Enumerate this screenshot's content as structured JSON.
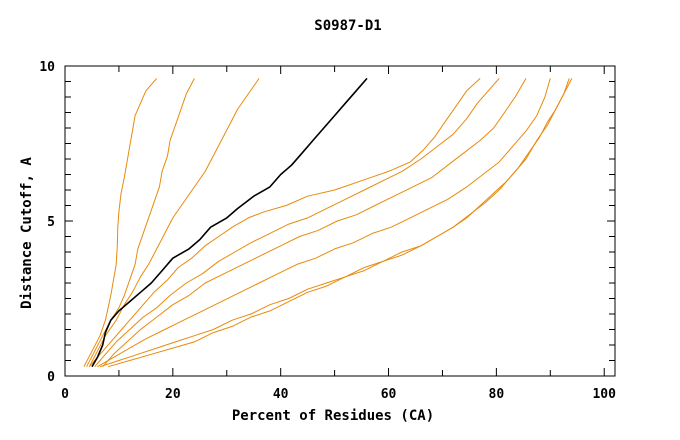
{
  "chart_data": {
    "type": "line",
    "title": "S0987-D1",
    "xlabel": "Percent of Residues (CA)",
    "ylabel": "Distance Cutoff, A",
    "xlim": [
      0,
      102
    ],
    "ylim": [
      0,
      10
    ],
    "x_ticks": [
      0,
      20,
      40,
      60,
      80,
      100
    ],
    "x_tick_labels": [
      "0",
      "20",
      "40",
      "60",
      "80",
      "100"
    ],
    "y_ticks": [
      0,
      5,
      10
    ],
    "y_tick_labels": [
      "0",
      "5",
      "10"
    ],
    "grid": false,
    "legend": "none",
    "colors": {
      "highlight": "#000000",
      "others": "#e88a0c",
      "axes": "#000000"
    },
    "series": [
      {
        "highlight": false,
        "points": [
          [
            3.5,
            0.3
          ],
          [
            5,
            0.8
          ],
          [
            6.5,
            1.3
          ],
          [
            7.5,
            1.8
          ],
          [
            8,
            2.2
          ],
          [
            8.5,
            2.6
          ],
          [
            9,
            3.1
          ],
          [
            9.5,
            3.6
          ],
          [
            9.7,
            4.2
          ],
          [
            9.8,
            4.8
          ],
          [
            10,
            5.3
          ],
          [
            10.4,
            5.9
          ],
          [
            11,
            6.4
          ],
          [
            11.5,
            6.9
          ],
          [
            12,
            7.4
          ],
          [
            12.5,
            7.9
          ],
          [
            13,
            8.4
          ],
          [
            14,
            8.8
          ],
          [
            15,
            9.2
          ],
          [
            17,
            9.6
          ]
        ]
      },
      {
        "highlight": false,
        "points": [
          [
            4,
            0.3
          ],
          [
            5.5,
            0.8
          ],
          [
            7,
            1.3
          ],
          [
            8.5,
            1.8
          ],
          [
            10,
            2.2
          ],
          [
            11,
            2.6
          ],
          [
            12,
            3.1
          ],
          [
            13,
            3.6
          ],
          [
            13.5,
            4.1
          ],
          [
            14.5,
            4.6
          ],
          [
            15.5,
            5.1
          ],
          [
            16.5,
            5.6
          ],
          [
            17.5,
            6.1
          ],
          [
            18,
            6.6
          ],
          [
            19,
            7.1
          ],
          [
            19.5,
            7.6
          ],
          [
            20.5,
            8.1
          ],
          [
            21.5,
            8.6
          ],
          [
            22.5,
            9.1
          ],
          [
            24,
            9.6
          ]
        ]
      },
      {
        "highlight": false,
        "points": [
          [
            4.5,
            0.3
          ],
          [
            6,
            0.8
          ],
          [
            7.5,
            1.3
          ],
          [
            9.5,
            1.8
          ],
          [
            11,
            2.3
          ],
          [
            12.5,
            2.7
          ],
          [
            14,
            3.2
          ],
          [
            15.5,
            3.6
          ],
          [
            17,
            4.1
          ],
          [
            18.5,
            4.6
          ],
          [
            20,
            5.1
          ],
          [
            22,
            5.6
          ],
          [
            24,
            6.1
          ],
          [
            26,
            6.6
          ],
          [
            27.5,
            7.1
          ],
          [
            29,
            7.6
          ],
          [
            30.5,
            8.1
          ],
          [
            32,
            8.6
          ],
          [
            34,
            9.1
          ],
          [
            36,
            9.6
          ]
        ]
      },
      {
        "highlight": true,
        "points": [
          [
            5,
            0.3
          ],
          [
            6,
            0.6
          ],
          [
            7,
            1.0
          ],
          [
            7.5,
            1.4
          ],
          [
            8.5,
            1.8
          ],
          [
            10,
            2.1
          ],
          [
            12,
            2.4
          ],
          [
            14,
            2.7
          ],
          [
            16,
            3.0
          ],
          [
            18,
            3.4
          ],
          [
            20,
            3.8
          ],
          [
            23,
            4.1
          ],
          [
            25,
            4.4
          ],
          [
            27,
            4.8
          ],
          [
            30,
            5.1
          ],
          [
            32,
            5.4
          ],
          [
            35,
            5.8
          ],
          [
            38,
            6.1
          ],
          [
            40,
            6.5
          ],
          [
            42,
            6.8
          ],
          [
            44,
            7.2
          ],
          [
            46,
            7.6
          ],
          [
            48,
            8.0
          ],
          [
            50,
            8.4
          ],
          [
            52,
            8.8
          ],
          [
            54,
            9.2
          ],
          [
            56,
            9.6
          ]
        ]
      },
      {
        "highlight": false,
        "points": [
          [
            4.5,
            0.3
          ],
          [
            6.5,
            0.7
          ],
          [
            8.5,
            1.1
          ],
          [
            10.5,
            1.5
          ],
          [
            12.5,
            1.9
          ],
          [
            14.5,
            2.3
          ],
          [
            16.5,
            2.7
          ],
          [
            19,
            3.1
          ],
          [
            21,
            3.5
          ],
          [
            23.5,
            3.8
          ],
          [
            26,
            4.2
          ],
          [
            28.5,
            4.5
          ],
          [
            31,
            4.8
          ],
          [
            34,
            5.1
          ],
          [
            37,
            5.3
          ],
          [
            41,
            5.5
          ],
          [
            45,
            5.8
          ],
          [
            50,
            6.0
          ],
          [
            55,
            6.3
          ],
          [
            60,
            6.6
          ],
          [
            64,
            6.9
          ],
          [
            66.5,
            7.3
          ],
          [
            68.5,
            7.7
          ],
          [
            70.5,
            8.2
          ],
          [
            72.5,
            8.7
          ],
          [
            74.5,
            9.2
          ],
          [
            77,
            9.6
          ]
        ]
      },
      {
        "highlight": false,
        "points": [
          [
            5.5,
            0.3
          ],
          [
            7.5,
            0.7
          ],
          [
            9.5,
            1.1
          ],
          [
            12,
            1.5
          ],
          [
            14.5,
            1.9
          ],
          [
            17,
            2.2
          ],
          [
            19.5,
            2.6
          ],
          [
            22.5,
            3.0
          ],
          [
            25.5,
            3.3
          ],
          [
            28.5,
            3.7
          ],
          [
            31.5,
            4.0
          ],
          [
            34.5,
            4.3
          ],
          [
            38,
            4.6
          ],
          [
            41.5,
            4.9
          ],
          [
            45,
            5.1
          ],
          [
            48.5,
            5.4
          ],
          [
            52,
            5.7
          ],
          [
            55.5,
            6.0
          ],
          [
            59,
            6.3
          ],
          [
            62.5,
            6.6
          ],
          [
            66,
            7.0
          ],
          [
            69,
            7.4
          ],
          [
            72,
            7.8
          ],
          [
            74.5,
            8.3
          ],
          [
            76.5,
            8.8
          ],
          [
            78.5,
            9.2
          ],
          [
            80.5,
            9.6
          ]
        ]
      },
      {
        "highlight": false,
        "points": [
          [
            7,
            0.3
          ],
          [
            9,
            0.7
          ],
          [
            11.5,
            1.1
          ],
          [
            14,
            1.5
          ],
          [
            17,
            1.9
          ],
          [
            20,
            2.3
          ],
          [
            23,
            2.6
          ],
          [
            26,
            3.0
          ],
          [
            29.5,
            3.3
          ],
          [
            33,
            3.6
          ],
          [
            36.5,
            3.9
          ],
          [
            40,
            4.2
          ],
          [
            43.5,
            4.5
          ],
          [
            47,
            4.7
          ],
          [
            50.5,
            5.0
          ],
          [
            54,
            5.2
          ],
          [
            57.5,
            5.5
          ],
          [
            61,
            5.8
          ],
          [
            64.5,
            6.1
          ],
          [
            68,
            6.4
          ],
          [
            71,
            6.8
          ],
          [
            74,
            7.2
          ],
          [
            77,
            7.6
          ],
          [
            79.5,
            8.0
          ],
          [
            81.5,
            8.5
          ],
          [
            83.5,
            9.0
          ],
          [
            85.5,
            9.6
          ]
        ]
      },
      {
        "highlight": false,
        "points": [
          [
            6,
            0.3
          ],
          [
            9,
            0.6
          ],
          [
            12,
            0.9
          ],
          [
            15,
            1.2
          ],
          [
            18.5,
            1.5
          ],
          [
            22,
            1.8
          ],
          [
            25.5,
            2.1
          ],
          [
            29,
            2.4
          ],
          [
            32.5,
            2.7
          ],
          [
            36,
            3.0
          ],
          [
            39.5,
            3.3
          ],
          [
            43,
            3.6
          ],
          [
            46.5,
            3.8
          ],
          [
            50,
            4.1
          ],
          [
            53.5,
            4.3
          ],
          [
            57,
            4.6
          ],
          [
            60.5,
            4.8
          ],
          [
            64,
            5.1
          ],
          [
            67.5,
            5.4
          ],
          [
            71,
            5.7
          ],
          [
            74.5,
            6.1
          ],
          [
            77.5,
            6.5
          ],
          [
            80.5,
            6.9
          ],
          [
            83,
            7.4
          ],
          [
            85.5,
            7.9
          ],
          [
            87.5,
            8.4
          ],
          [
            89,
            9.0
          ],
          [
            90,
            9.6
          ]
        ]
      },
      {
        "highlight": false,
        "points": [
          [
            6.5,
            0.3
          ],
          [
            10,
            0.5
          ],
          [
            13.5,
            0.7
          ],
          [
            17,
            0.9
          ],
          [
            20.5,
            1.1
          ],
          [
            24,
            1.3
          ],
          [
            27.5,
            1.5
          ],
          [
            31,
            1.8
          ],
          [
            34.5,
            2.0
          ],
          [
            38,
            2.3
          ],
          [
            41.5,
            2.5
          ],
          [
            45,
            2.8
          ],
          [
            48.5,
            3.0
          ],
          [
            52,
            3.2
          ],
          [
            55.5,
            3.5
          ],
          [
            59,
            3.7
          ],
          [
            62.5,
            3.9
          ],
          [
            66,
            4.2
          ],
          [
            69,
            4.5
          ],
          [
            72,
            4.8
          ],
          [
            75,
            5.2
          ],
          [
            78,
            5.6
          ],
          [
            80.5,
            6.0
          ],
          [
            83,
            6.5
          ],
          [
            85.5,
            7.0
          ],
          [
            87.5,
            7.6
          ],
          [
            89.5,
            8.1
          ],
          [
            91,
            8.6
          ],
          [
            92.5,
            9.1
          ],
          [
            93.5,
            9.6
          ]
        ]
      },
      {
        "highlight": false,
        "points": [
          [
            8,
            0.3
          ],
          [
            12,
            0.5
          ],
          [
            16,
            0.7
          ],
          [
            20,
            0.9
          ],
          [
            24,
            1.1
          ],
          [
            27.5,
            1.4
          ],
          [
            31,
            1.6
          ],
          [
            34.5,
            1.9
          ],
          [
            38,
            2.1
          ],
          [
            41.5,
            2.4
          ],
          [
            45,
            2.7
          ],
          [
            48.5,
            2.9
          ],
          [
            52,
            3.2
          ],
          [
            55.5,
            3.4
          ],
          [
            59,
            3.7
          ],
          [
            62.5,
            4.0
          ],
          [
            66,
            4.2
          ],
          [
            69,
            4.5
          ],
          [
            72,
            4.8
          ],
          [
            74.5,
            5.1
          ],
          [
            77,
            5.5
          ],
          [
            79.5,
            5.9
          ],
          [
            82,
            6.3
          ],
          [
            84,
            6.7
          ],
          [
            86,
            7.2
          ],
          [
            88,
            7.7
          ],
          [
            89.5,
            8.2
          ],
          [
            91,
            8.6
          ],
          [
            92.5,
            9.1
          ],
          [
            94,
            9.6
          ]
        ]
      }
    ]
  }
}
